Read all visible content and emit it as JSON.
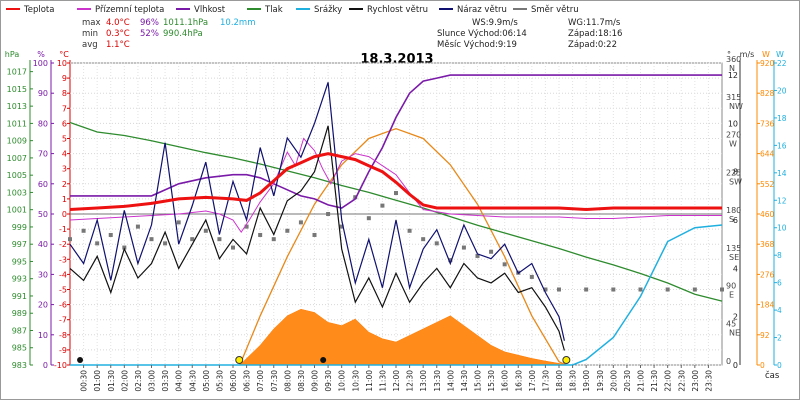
{
  "chart_data": {
    "type": "line",
    "title": "18.3.2013",
    "legend": [
      {
        "name": "Teplota",
        "color": "#ee1111"
      },
      {
        "name": "Přízemní teplota",
        "color": "#cc33cc"
      },
      {
        "name": "Vlhkost",
        "color": "#7a1aa8"
      },
      {
        "name": "Tlak",
        "color": "#2e8b2e"
      },
      {
        "name": "Srážky",
        "color": "#20b0e0"
      },
      {
        "name": "Rychlost větru",
        "color": "#111111"
      },
      {
        "name": "Náraz větru",
        "color": "#101070"
      },
      {
        "name": "Směr větru",
        "color": "#777777"
      }
    ],
    "stats": {
      "max": {
        "label": "max",
        "teplota": "4.0°C",
        "vlhkost": "96%",
        "tlak": "1011.1hPa",
        "srazky": "10.2mm"
      },
      "min": {
        "label": "min",
        "teplota": "0.3°C",
        "vlhkost": "52%",
        "tlak": "990.4hPa"
      },
      "avg": {
        "label": "avg",
        "teplota": "1.1°C"
      }
    },
    "info": {
      "ws": "WS:9.9m/s",
      "wg": "WG:11.7m/s",
      "slunce": "Slunce Východ:06:14",
      "slunce_zapad": "Západ:18:16",
      "mesic": "Měsíc  Východ:9:19",
      "mesic_zapad": "Západ:0:22"
    },
    "left_axes": {
      "hpa": {
        "unit": "hPa",
        "ticks": [
          "1017",
          "1015",
          "1013",
          "1011",
          "1009",
          "1007",
          "1005",
          "1003",
          "1001",
          "999",
          "997",
          "995",
          "993",
          "991",
          "989",
          "987",
          "985",
          "983"
        ]
      },
      "pct": {
        "unit": "%",
        "ticks": [
          "100",
          "90",
          "80",
          "70",
          "60",
          "50",
          "40",
          "30",
          "20",
          "10",
          "0"
        ]
      },
      "degc": {
        "unit": "°C",
        "ticks": [
          "10",
          "9",
          "8",
          "7",
          "6",
          "5",
          "4",
          "3",
          "2",
          "1",
          "0",
          "-1",
          "-2",
          "-3",
          "-4",
          "-5",
          "-6",
          "-7",
          "-8",
          "-9",
          "-10"
        ]
      }
    },
    "right_axes": {
      "dir": {
        "unit": "°",
        "ticks": [
          {
            "v": "360",
            "d": "N"
          },
          {
            "v": "315",
            "d": "NW"
          },
          {
            "v": "270",
            "d": "W"
          },
          {
            "v": "225",
            "d": "SW"
          },
          {
            "v": "180",
            "d": "S"
          },
          {
            "v": "135",
            "d": "SE"
          },
          {
            "v": "90",
            "d": "E"
          },
          {
            "v": "45",
            "d": "NE"
          },
          {
            "v": "0",
            "d": ""
          }
        ]
      },
      "ms": {
        "unit": "m/s",
        "ticks": [
          "12",
          "10",
          "8",
          "6",
          "4",
          "2",
          "0"
        ]
      },
      "wm2": {
        "unit": "W",
        "ticks": [
          "920",
          "828",
          "736",
          "644",
          "552",
          "460",
          "368",
          "276",
          "184",
          "92",
          "0"
        ]
      },
      "mm": {
        "ticks": [
          "22",
          "20",
          "18",
          "16",
          "14",
          "12",
          "10",
          "8",
          "6",
          "4",
          "2",
          "0"
        ]
      }
    },
    "time_label": "čas",
    "time_ticks": [
      "00:30",
      "01:00",
      "01:30",
      "02:00",
      "02:30",
      "03:00",
      "03:30",
      "04:00",
      "04:30",
      "05:00",
      "05:30",
      "06:00",
      "06:30",
      "07:00",
      "07:30",
      "08:00",
      "08:30",
      "09:00",
      "09:30",
      "10:00",
      "10:30",
      "11:00",
      "11:30",
      "12:00",
      "12:30",
      "13:00",
      "13:30",
      "14:00",
      "14:30",
      "15:00",
      "15:30",
      "16:00",
      "16:30",
      "17:00",
      "17:30",
      "18:00",
      "18:30",
      "19:00",
      "19:30",
      "20:00",
      "20:30",
      "21:00",
      "21:30",
      "22:00",
      "22:30",
      "23:00",
      "23:30"
    ],
    "series": {
      "teplota": {
        "unit": "°C",
        "hours": [
          0,
          1,
          2,
          3,
          4,
          5,
          6,
          6.5,
          7,
          7.5,
          8,
          8.5,
          9,
          9.5,
          10,
          10.5,
          11,
          11.5,
          12,
          12.5,
          13,
          13.5,
          14,
          15,
          16,
          17,
          18,
          19,
          20,
          21,
          22,
          23,
          24
        ],
        "values": [
          0.3,
          0.4,
          0.5,
          0.7,
          1.0,
          1.1,
          1.0,
          0.9,
          1.4,
          2.2,
          3.0,
          3.4,
          3.8,
          4.0,
          3.8,
          3.6,
          3.2,
          2.8,
          2.1,
          1.3,
          0.6,
          0.4,
          0.4,
          0.4,
          0.4,
          0.4,
          0.4,
          0.3,
          0.4,
          0.4,
          0.4,
          0.4,
          0.4
        ]
      },
      "prizemni_teplota": {
        "unit": "°C",
        "hours": [
          0,
          1,
          2,
          3,
          4,
          5,
          5.5,
          6,
          6.3,
          6.6,
          7,
          7.5,
          8,
          8.3,
          8.6,
          9,
          9.3,
          9.6,
          10,
          10.5,
          11,
          11.5,
          12,
          12.5,
          13,
          14,
          15,
          16,
          17,
          18,
          19,
          20,
          21,
          22,
          23,
          24
        ],
        "values": [
          -0.4,
          -0.3,
          -0.2,
          -0.1,
          0.0,
          0.2,
          0.0,
          -0.4,
          -1.2,
          -0.4,
          0.8,
          2.0,
          4.1,
          3.2,
          5.0,
          4.2,
          3.0,
          2.0,
          3.5,
          4.0,
          3.8,
          3.2,
          2.6,
          1.4,
          0.3,
          0.0,
          -0.1,
          -0.2,
          -0.2,
          -0.2,
          -0.3,
          -0.3,
          -0.2,
          -0.1,
          -0.1,
          -0.1
        ]
      },
      "vlhkost": {
        "unit": "%",
        "hours": [
          0,
          1,
          2,
          3,
          4,
          5,
          6,
          6.5,
          7,
          7.5,
          8,
          8.5,
          9,
          9.5,
          10,
          10.5,
          11,
          11.5,
          12,
          12.5,
          13,
          13.5,
          14,
          15,
          16,
          17,
          18,
          19,
          20,
          21,
          22,
          23,
          24
        ],
        "values": [
          56,
          56,
          56,
          56,
          60,
          62,
          63,
          63,
          62,
          60,
          58,
          56,
          55,
          53,
          52,
          55,
          64,
          72,
          82,
          90,
          94,
          95,
          96,
          96,
          96,
          96,
          96,
          96,
          96,
          96,
          96,
          96,
          96
        ]
      },
      "tlak": {
        "unit": "hPa",
        "hours": [
          0,
          1,
          2,
          3,
          4,
          5,
          6,
          7,
          8,
          9,
          10,
          11,
          12,
          13,
          14,
          15,
          16,
          17,
          18,
          19,
          20,
          21,
          22,
          23,
          24
        ],
        "values": [
          1011.1,
          1010.0,
          1009.6,
          1009.0,
          1008.3,
          1007.6,
          1007.0,
          1006.3,
          1005.5,
          1004.7,
          1003.8,
          1003.0,
          1002.1,
          1001.2,
          1000.2,
          999.2,
          998.3,
          997.4,
          996.5,
          995.5,
          994.6,
          993.6,
          992.5,
          991.2,
          990.4
        ]
      },
      "srazky": {
        "unit": "mm",
        "hours": [
          0,
          17,
          18.5,
          19,
          20,
          21,
          22,
          23,
          24
        ],
        "values": [
          0,
          0,
          0,
          0.4,
          2.0,
          5.0,
          9.0,
          10.0,
          10.2
        ]
      },
      "rychlost_vetru": {
        "unit": "m/s",
        "hours": [
          0,
          0.5,
          1,
          1.5,
          2,
          2.5,
          3,
          3.5,
          4,
          4.5,
          5,
          5.5,
          6,
          6.5,
          7,
          7.5,
          8,
          8.5,
          9,
          9.5,
          10,
          10.5,
          11,
          11.5,
          12,
          12.5,
          13,
          13.5,
          14,
          14.5,
          15,
          15.5,
          16,
          16.5,
          17,
          17.5,
          18,
          18.2
        ],
        "values": [
          4.0,
          3.5,
          4.5,
          3.0,
          4.8,
          3.6,
          4.2,
          5.5,
          4.0,
          5.0,
          6.0,
          4.4,
          5.2,
          4.6,
          6.5,
          5.4,
          6.8,
          7.2,
          8.0,
          9.9,
          4.8,
          2.6,
          3.6,
          2.4,
          3.8,
          2.6,
          3.4,
          4.0,
          3.2,
          4.2,
          3.6,
          3.4,
          3.8,
          3.0,
          3.2,
          2.4,
          1.4,
          0.6
        ]
      },
      "naraz_vetru": {
        "unit": "m/s",
        "hours": [
          0,
          0.5,
          1,
          1.5,
          2,
          2.5,
          3,
          3.5,
          4,
          4.5,
          5,
          5.5,
          6,
          6.5,
          7,
          7.5,
          8,
          8.5,
          9,
          9.5,
          10,
          10.5,
          11,
          11.5,
          12,
          12.5,
          13,
          13.5,
          14,
          14.5,
          15,
          15.5,
          16,
          16.5,
          17,
          17.5,
          18,
          18.2
        ],
        "values": [
          5.0,
          4.2,
          6.0,
          3.5,
          6.4,
          4.2,
          5.8,
          9.2,
          5.0,
          6.6,
          8.4,
          5.4,
          7.6,
          6.0,
          9.0,
          7.0,
          9.4,
          8.6,
          10.0,
          11.7,
          6.0,
          3.4,
          5.2,
          3.2,
          6.0,
          3.2,
          4.8,
          5.6,
          4.2,
          5.8,
          4.6,
          4.4,
          5.0,
          3.8,
          4.2,
          3.0,
          2.0,
          1.0
        ]
      },
      "smer_vetru": {
        "unit": "°",
        "hours": [
          0,
          0.5,
          1,
          1.5,
          2,
          2.5,
          3,
          3.5,
          4,
          4.5,
          5,
          5.5,
          6,
          6.5,
          7,
          7.5,
          8,
          8.5,
          9,
          9.5,
          10,
          10.5,
          11,
          11.5,
          12,
          12.5,
          13,
          13.5,
          14,
          14.5,
          15,
          15.5,
          16,
          16.5,
          17,
          17.5,
          18,
          19,
          20,
          21,
          22,
          23,
          24
        ],
        "values": [
          150,
          160,
          145,
          155,
          140,
          165,
          150,
          145,
          170,
          150,
          160,
          150,
          140,
          165,
          155,
          150,
          160,
          170,
          155,
          180,
          165,
          200,
          175,
          190,
          205,
          160,
          150,
          145,
          125,
          140,
          130,
          135,
          120,
          110,
          105,
          90,
          90,
          90,
          90,
          90,
          90,
          90,
          90
        ]
      },
      "slunecni_zareni": {
        "unit": "W/m²",
        "hours": [
          6.25,
          7,
          7.5,
          8,
          8.5,
          9,
          9.5,
          10,
          10.5,
          11,
          11.5,
          12,
          12.5,
          13,
          13.5,
          14,
          14.5,
          15,
          15.5,
          16,
          16.5,
          17,
          17.5,
          18,
          18.27
        ],
        "values": [
          0,
          60,
          110,
          150,
          170,
          160,
          130,
          120,
          140,
          100,
          80,
          70,
          90,
          110,
          130,
          150,
          120,
          90,
          60,
          40,
          30,
          20,
          12,
          5,
          0
        ]
      },
      "teoreticke_zareni": {
        "unit": "W/m²",
        "hours": [
          6.25,
          7,
          8,
          9,
          10,
          11,
          12,
          13,
          14,
          15,
          16,
          17,
          18,
          18.27
        ],
        "values": [
          0,
          150,
          330,
          490,
          610,
          690,
          720,
          690,
          610,
          490,
          330,
          150,
          10,
          0
        ]
      }
    },
    "markers": {
      "sunrise_h": 6.23,
      "sunset_h": 18.27,
      "moonrise_h": 9.32,
      "moonset_h": 0.37
    },
    "ylim_degc": [
      -10,
      10
    ],
    "ylim_pct": [
      0,
      100
    ],
    "ylim_hpa": [
      983,
      1018
    ],
    "ylim_ms": [
      0,
      12.5
    ],
    "ylim_wm2": [
      0,
      920
    ],
    "ylim_mm": [
      0,
      22
    ],
    "ylim_deg": [
      0,
      360
    ],
    "xlim_h": [
      0,
      24
    ]
  }
}
